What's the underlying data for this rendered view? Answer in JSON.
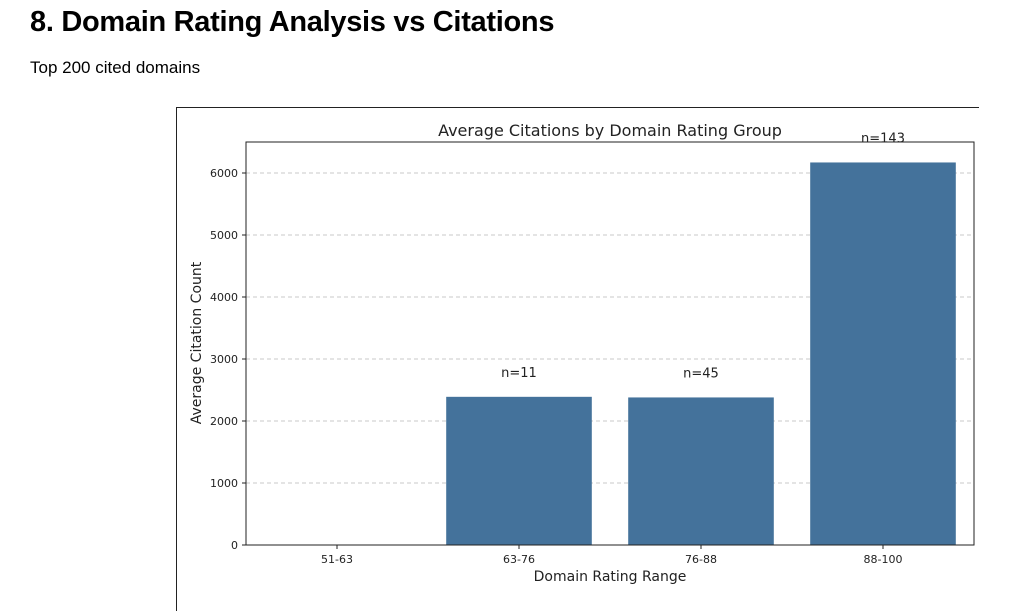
{
  "section": {
    "title": "8. Domain Rating Analysis vs Citations",
    "subtitle": "Top 200 cited domains"
  },
  "chart_data": {
    "type": "bar",
    "title": "Average Citations by Domain Rating Group",
    "xlabel": "Domain Rating Range",
    "ylabel": "Average Citation Count",
    "categories": [
      "51-63",
      "63-76",
      "76-88",
      "88-100"
    ],
    "values": [
      0,
      2390,
      2380,
      6170
    ],
    "bar_labels": [
      "",
      "n=11",
      "n=45",
      "n=143"
    ],
    "ylim": [
      0,
      6500
    ],
    "yticks": [
      0,
      1000,
      2000,
      3000,
      4000,
      5000,
      6000
    ],
    "grid": "y, dashed",
    "bar_color": "#44729b"
  }
}
